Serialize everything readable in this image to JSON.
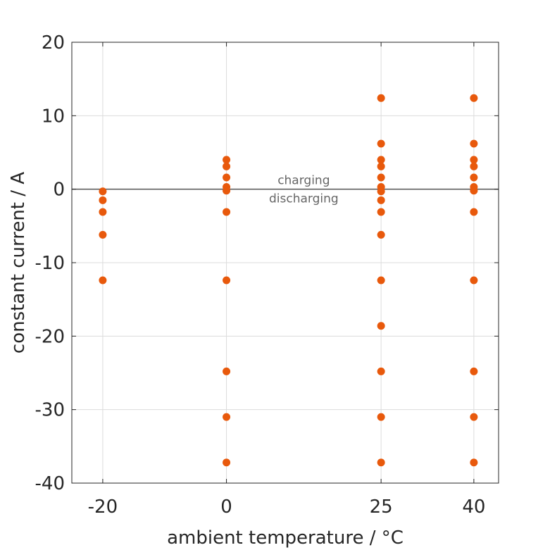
{
  "chart_data": {
    "type": "scatter",
    "xlabel": "ambient temperature / °C",
    "ylabel": "constant current / A",
    "x_ticks": [
      -20,
      0,
      25,
      40
    ],
    "y_ticks": [
      -40,
      -30,
      -20,
      -10,
      0,
      10,
      20
    ],
    "xlim": [
      -25,
      44
    ],
    "ylim": [
      -40,
      20
    ],
    "grid": true,
    "reference_line_y": 0,
    "annotations": [
      "charging",
      "discharging"
    ],
    "colors": {
      "marker": "#E8590C",
      "reference_line": "#555555",
      "grid": "#DCDCDC"
    },
    "series": [
      {
        "points": [
          [
            -20,
            -0.3
          ],
          [
            -20,
            -1.5
          ],
          [
            -20,
            -3.1
          ],
          [
            -20,
            -6.2
          ],
          [
            -20,
            -12.4
          ],
          [
            0,
            4.0
          ],
          [
            0,
            3.1
          ],
          [
            0,
            1.6
          ],
          [
            0,
            0.3
          ],
          [
            0,
            -0.2
          ],
          [
            0,
            -3.1
          ],
          [
            0,
            -12.4
          ],
          [
            0,
            -24.8
          ],
          [
            0,
            -31.0
          ],
          [
            0,
            -37.2
          ],
          [
            25,
            12.4
          ],
          [
            25,
            6.2
          ],
          [
            25,
            4.0
          ],
          [
            25,
            3.1
          ],
          [
            25,
            1.6
          ],
          [
            25,
            0.3
          ],
          [
            25,
            -0.3
          ],
          [
            25,
            -1.5
          ],
          [
            25,
            -3.1
          ],
          [
            25,
            -6.2
          ],
          [
            25,
            -12.4
          ],
          [
            25,
            -18.6
          ],
          [
            25,
            -24.8
          ],
          [
            25,
            -31.0
          ],
          [
            25,
            -37.2
          ],
          [
            40,
            12.4
          ],
          [
            40,
            6.2
          ],
          [
            40,
            4.0
          ],
          [
            40,
            3.1
          ],
          [
            40,
            1.6
          ],
          [
            40,
            0.3
          ],
          [
            40,
            -0.2
          ],
          [
            40,
            -3.1
          ],
          [
            40,
            -12.4
          ],
          [
            40,
            -24.8
          ],
          [
            40,
            -31.0
          ],
          [
            40,
            -37.2
          ]
        ]
      }
    ]
  }
}
